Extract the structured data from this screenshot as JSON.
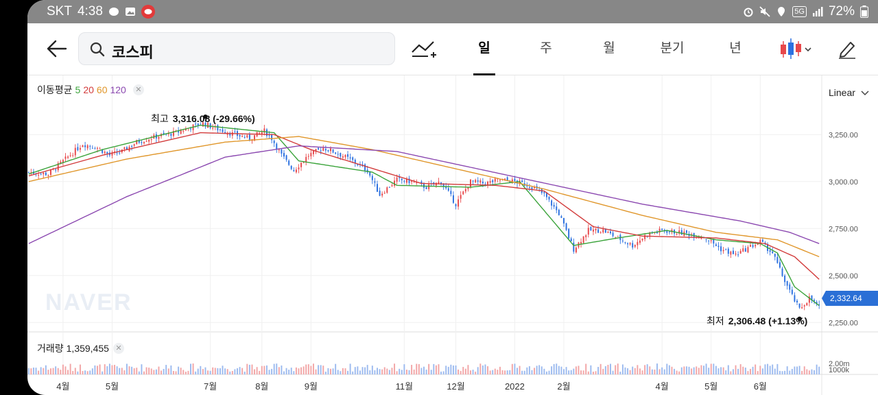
{
  "status_bar": {
    "carrier": "SKT",
    "time": "4:38",
    "network": "5G",
    "battery": "72%",
    "left_icons": [
      "chat-bubble-icon",
      "gallery-icon",
      "notification-app-icon"
    ],
    "right_icons": [
      "alarm-icon",
      "mute-icon",
      "location-icon",
      "network-5g-icon",
      "signal-icon",
      "battery-icon"
    ]
  },
  "header": {
    "search_value": "코스피",
    "tabs": [
      {
        "label": "일",
        "active": true
      },
      {
        "label": "주",
        "active": false
      },
      {
        "label": "월",
        "active": false
      },
      {
        "label": "분기",
        "active": false
      },
      {
        "label": "년",
        "active": false
      }
    ]
  },
  "chart": {
    "ma_legend": {
      "title": "이동평균",
      "periods": [
        {
          "label": "5",
          "color": "#3aa33a"
        },
        {
          "label": "20",
          "color": "#d23b3b"
        },
        {
          "label": "60",
          "color": "#e0962a"
        },
        {
          "label": "120",
          "color": "#8b48b0"
        }
      ]
    },
    "scale_label": "Linear",
    "high": {
      "label": "최고",
      "value": "3,316.08 (-29.66%)"
    },
    "low": {
      "label": "최저",
      "value": "2,306.48 (+1.13%)"
    },
    "last_price": "2,332.64",
    "watermark": "NAVER",
    "volume_legend": {
      "label": "거래량",
      "value": "1,359,455"
    },
    "volume_ticks": [
      "2.00m",
      "1000k"
    ],
    "colors": {
      "up": "#e8484b",
      "down": "#2c71e0",
      "accent": "#2a6fd6"
    }
  },
  "chart_data": {
    "type": "candlestick",
    "y_ticks": [
      "3,250.00",
      "3,000.00",
      "2,750.00",
      "2,500.00",
      "2,250.00"
    ],
    "y_tick_values": [
      3250,
      3000,
      2750,
      2500,
      2250
    ],
    "ylim": [
      2200,
      3470
    ],
    "x_tick_labels": [
      "4월",
      "5월",
      "7월",
      "8월",
      "9월",
      "11월",
      "12월",
      "2022",
      "2월",
      "4월",
      "5월",
      "6월"
    ],
    "x_tick_index": [
      14,
      34,
      74,
      95,
      115,
      153,
      174,
      198,
      218,
      258,
      278,
      298
    ],
    "close_path": [
      [
        0,
        3050
      ],
      [
        8,
        3040
      ],
      [
        15,
        3120
      ],
      [
        22,
        3200
      ],
      [
        28,
        3180
      ],
      [
        33,
        3140
      ],
      [
        38,
        3160
      ],
      [
        44,
        3210
      ],
      [
        52,
        3240
      ],
      [
        60,
        3260
      ],
      [
        66,
        3290
      ],
      [
        71,
        3310
      ],
      [
        77,
        3280
      ],
      [
        84,
        3250
      ],
      [
        90,
        3230
      ],
      [
        96,
        3270
      ],
      [
        99,
        3230
      ],
      [
        103,
        3140
      ],
      [
        108,
        3060
      ],
      [
        114,
        3140
      ],
      [
        120,
        3180
      ],
      [
        126,
        3150
      ],
      [
        132,
        3110
      ],
      [
        138,
        3060
      ],
      [
        143,
        2930
      ],
      [
        150,
        3010
      ],
      [
        156,
        3000
      ],
      [
        162,
        2970
      ],
      [
        168,
        3000
      ],
      [
        174,
        2880
      ],
      [
        180,
        3000
      ],
      [
        186,
        2990
      ],
      [
        192,
        3010
      ],
      [
        198,
        3000
      ],
      [
        204,
        2980
      ],
      [
        210,
        2930
      ],
      [
        216,
        2830
      ],
      [
        222,
        2640
      ],
      [
        228,
        2740
      ],
      [
        234,
        2740
      ],
      [
        240,
        2700
      ],
      [
        246,
        2660
      ],
      [
        252,
        2720
      ],
      [
        258,
        2740
      ],
      [
        264,
        2730
      ],
      [
        270,
        2720
      ],
      [
        276,
        2700
      ],
      [
        282,
        2640
      ],
      [
        288,
        2610
      ],
      [
        292,
        2640
      ],
      [
        298,
        2680
      ],
      [
        303,
        2620
      ],
      [
        307,
        2500
      ],
      [
        311,
        2390
      ],
      [
        314,
        2320
      ],
      [
        318,
        2380
      ],
      [
        322,
        2332
      ]
    ],
    "ma_series": [
      {
        "period": "5",
        "points": [
          [
            0,
            3040
          ],
          [
            30,
            3170
          ],
          [
            70,
            3300
          ],
          [
            100,
            3260
          ],
          [
            110,
            3110
          ],
          [
            140,
            3050
          ],
          [
            150,
            2980
          ],
          [
            180,
            2970
          ],
          [
            200,
            3000
          ],
          [
            222,
            2660
          ],
          [
            240,
            2700
          ],
          [
            260,
            2740
          ],
          [
            280,
            2690
          ],
          [
            298,
            2670
          ],
          [
            305,
            2620
          ],
          [
            312,
            2440
          ],
          [
            322,
            2340
          ]
        ]
      },
      {
        "period": "20",
        "points": [
          [
            0,
            3030
          ],
          [
            30,
            3140
          ],
          [
            70,
            3260
          ],
          [
            100,
            3250
          ],
          [
            115,
            3170
          ],
          [
            140,
            3070
          ],
          [
            160,
            2990
          ],
          [
            190,
            2980
          ],
          [
            210,
            2950
          ],
          [
            230,
            2760
          ],
          [
            250,
            2710
          ],
          [
            280,
            2700
          ],
          [
            300,
            2670
          ],
          [
            312,
            2600
          ],
          [
            322,
            2480
          ]
        ]
      },
      {
        "period": "60",
        "points": [
          [
            0,
            3000
          ],
          [
            40,
            3120
          ],
          [
            80,
            3210
          ],
          [
            110,
            3240
          ],
          [
            140,
            3170
          ],
          [
            180,
            3050
          ],
          [
            210,
            2960
          ],
          [
            250,
            2820
          ],
          [
            280,
            2730
          ],
          [
            305,
            2690
          ],
          [
            322,
            2600
          ]
        ]
      },
      {
        "period": "120",
        "points": [
          [
            0,
            2670
          ],
          [
            40,
            2920
          ],
          [
            80,
            3130
          ],
          [
            110,
            3190
          ],
          [
            150,
            3160
          ],
          [
            200,
            3020
          ],
          [
            250,
            2880
          ],
          [
            290,
            2790
          ],
          [
            310,
            2730
          ],
          [
            322,
            2670
          ]
        ]
      }
    ],
    "high_point": {
      "index": 72,
      "value": 3316.08
    },
    "low_point": {
      "index": 314,
      "value": 2306.48
    }
  }
}
